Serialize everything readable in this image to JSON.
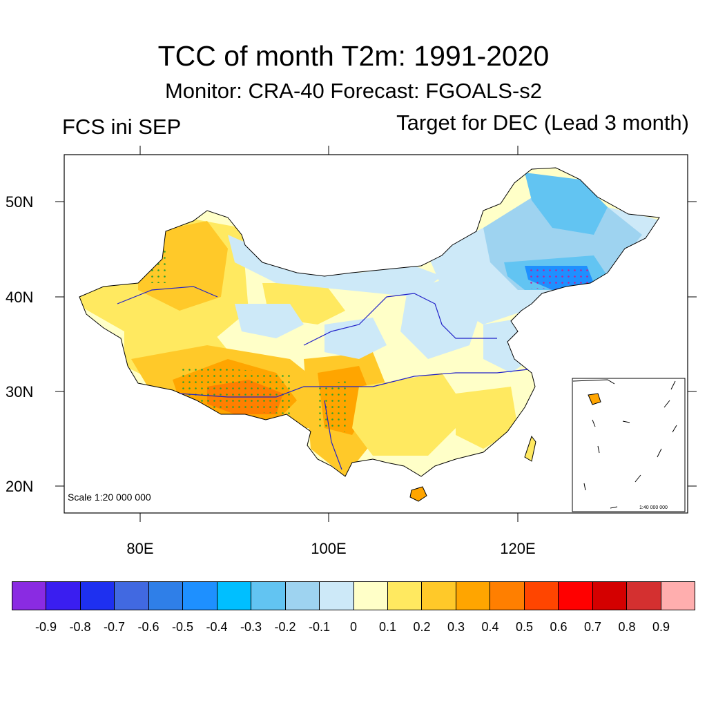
{
  "title": "TCC of month T2m: 1991-2020",
  "subtitle": "Monitor: CRA-40   Forecast: FGOALS-s2",
  "left_note": "FCS ini SEP",
  "right_note": "Target for DEC (Lead 3 month)",
  "map": {
    "lat_labels": [
      "50N",
      "40N",
      "30N",
      "20N"
    ],
    "lat_values": [
      50,
      40,
      30,
      20
    ],
    "lon_labels": [
      "80E",
      "100E",
      "120E"
    ],
    "lon_values": [
      80,
      100,
      120
    ],
    "lon_range": [
      72,
      138
    ],
    "lat_range": [
      17,
      55
    ],
    "scale_main": "Scale 1:20 000 000",
    "scale_inset": "1:40 000 000"
  },
  "colorbar": {
    "labels": [
      "-0.9",
      "-0.8",
      "-0.7",
      "-0.6",
      "-0.5",
      "-0.4",
      "-0.3",
      "-0.2",
      "-0.1",
      "0",
      "0.1",
      "0.2",
      "0.3",
      "0.4",
      "0.5",
      "0.6",
      "0.7",
      "0.8",
      "0.9"
    ],
    "colors": [
      "#8a2be2",
      "#3a1ef0",
      "#1e30f0",
      "#4169e1",
      "#2f7fe8",
      "#1e90ff",
      "#00bfff",
      "#62c4f2",
      "#9ed3f0",
      "#cde9f8",
      "#ffffc8",
      "#ffe960",
      "#ffc929",
      "#ffa500",
      "#ff7f00",
      "#ff4500",
      "#ff0000",
      "#d40000",
      "#d43030",
      "#ffaeae"
    ]
  }
}
